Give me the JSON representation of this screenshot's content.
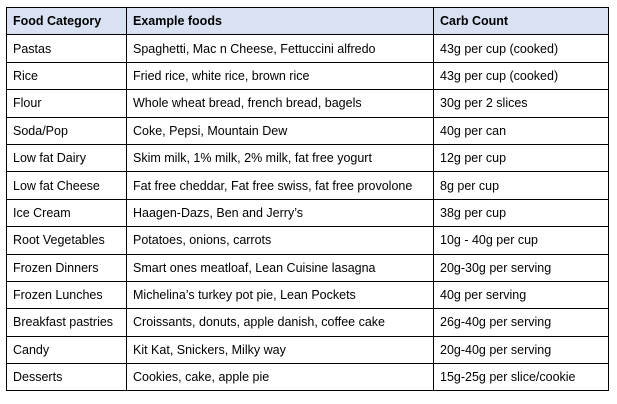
{
  "table": {
    "headers": [
      "Food Category",
      "Example foods",
      "Carb Count"
    ],
    "rows": [
      [
        "Pastas",
        "Spaghetti, Mac n Cheese, Fettuccini alfredo",
        "43g per cup (cooked)"
      ],
      [
        "Rice",
        "Fried rice, white rice, brown rice",
        "43g per cup (cooked)"
      ],
      [
        "Flour",
        "Whole wheat bread, french bread, bagels",
        "30g per 2 slices"
      ],
      [
        "Soda/Pop",
        "Coke, Pepsi, Mountain Dew",
        "40g per can"
      ],
      [
        "Low fat Dairy",
        "Skim milk, 1% milk, 2% milk, fat free yogurt",
        "12g per cup"
      ],
      [
        "Low fat Cheese",
        "Fat free cheddar, Fat free swiss, fat free provolone",
        "8g per cup"
      ],
      [
        "Ice Cream",
        "Haagen-Dazs, Ben and Jerry’s",
        "38g per cup"
      ],
      [
        "Root Vegetables",
        "Potatoes, onions, carrots",
        "10g - 40g per cup"
      ],
      [
        "Frozen Dinners",
        "Smart ones meatloaf, Lean Cuisine lasagna",
        "20g-30g per serving"
      ],
      [
        "Frozen Lunches",
        "Michelina’s turkey pot pie, Lean Pockets",
        "40g per serving"
      ],
      [
        "Breakfast pastries",
        "Croissants, donuts, apple danish, coffee cake",
        "26g-40g per serving"
      ],
      [
        "Candy",
        "Kit Kat, Snickers, Milky way",
        "20g-40g per serving"
      ],
      [
        "Desserts",
        "Cookies, cake, apple pie",
        "15g-25g per slice/cookie"
      ]
    ]
  },
  "colors": {
    "header_background": "#d9e2f3",
    "border": "#000000",
    "text": "#000000"
  }
}
